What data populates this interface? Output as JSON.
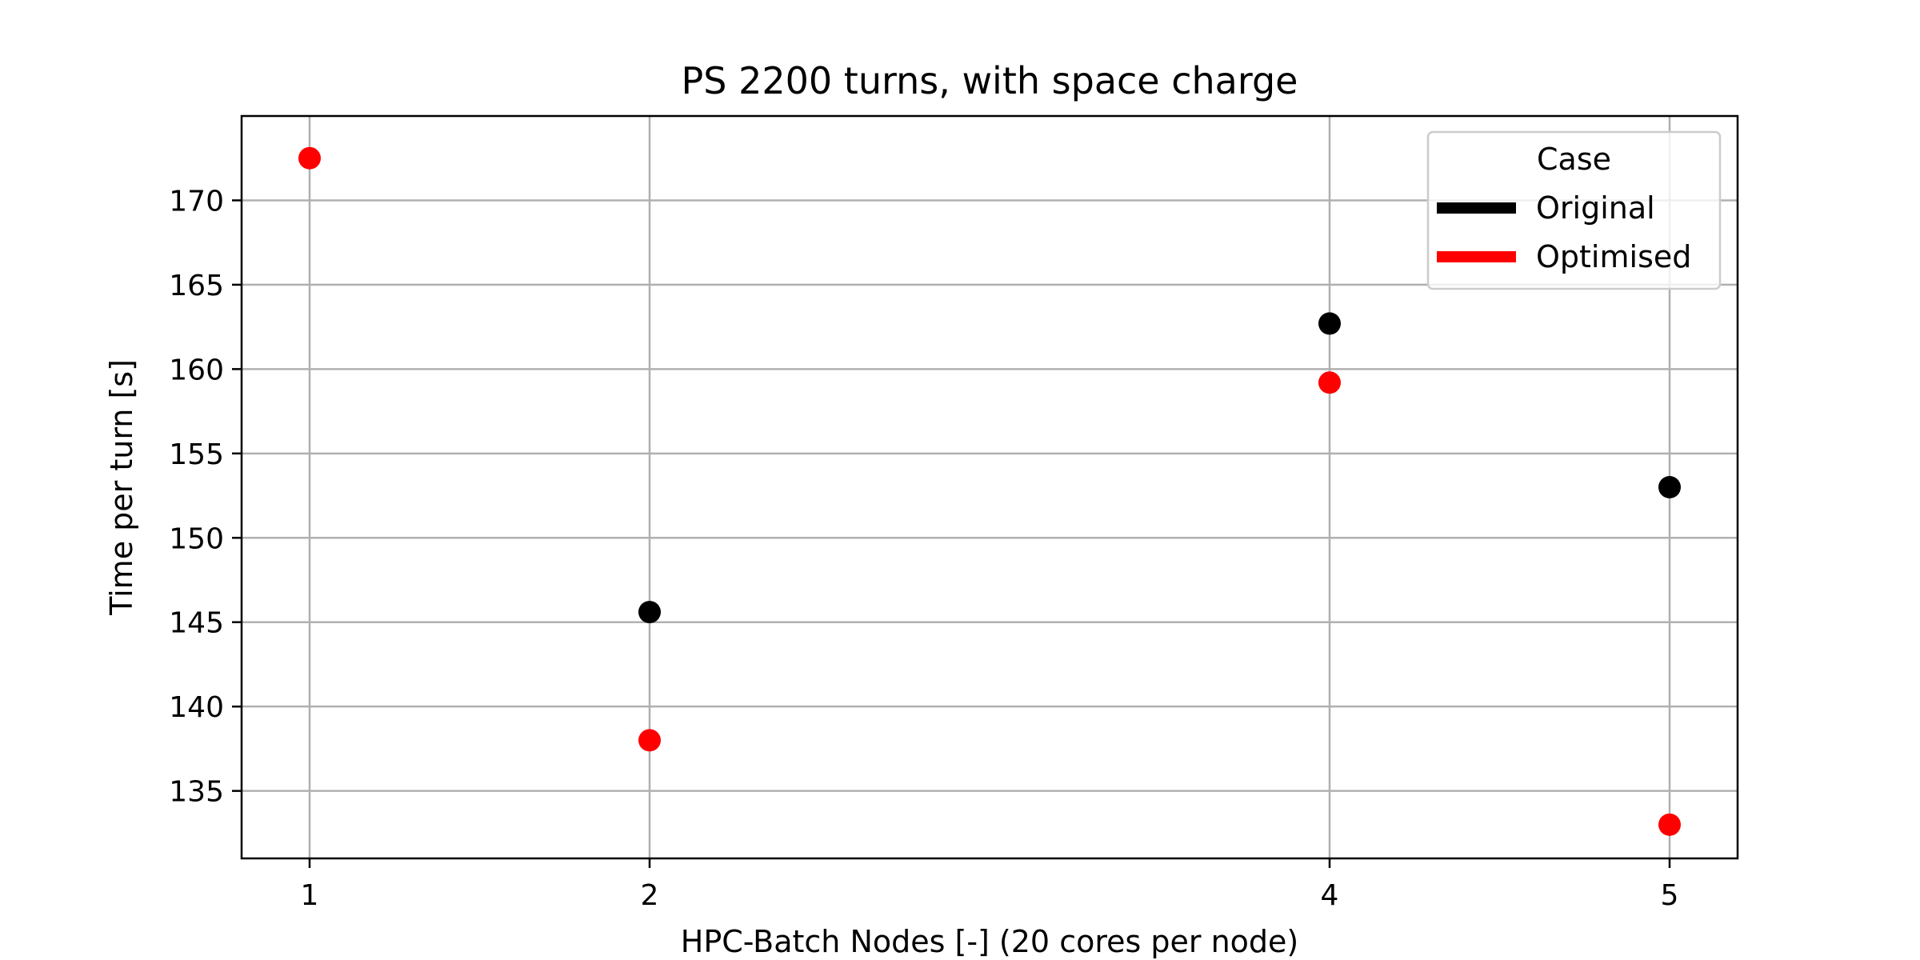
{
  "chart_data": {
    "type": "scatter",
    "title": "PS 2200 turns, with space charge",
    "xlabel": "HPC-Batch Nodes [-] (20 cores per node)",
    "ylabel": "Time per turn [s]",
    "x_ticks": [
      1,
      2,
      4,
      5
    ],
    "y_ticks": [
      135,
      140,
      145,
      150,
      155,
      160,
      165,
      170
    ],
    "xlim": [
      0.8,
      5.2
    ],
    "ylim": [
      131,
      175
    ],
    "grid": true,
    "legend": {
      "title": "Case",
      "placement": "top-right",
      "entries": [
        {
          "label": "Original",
          "color": "#000000"
        },
        {
          "label": "Optimised",
          "color": "#ff0000"
        }
      ]
    },
    "series": [
      {
        "name": "Original",
        "color": "#000000",
        "x": [
          2,
          4,
          5
        ],
        "y": [
          145.6,
          162.7,
          153.0
        ]
      },
      {
        "name": "Optimised",
        "color": "#ff0000",
        "x": [
          1,
          2,
          4,
          5
        ],
        "y": [
          172.5,
          138.0,
          159.2,
          133.0
        ]
      }
    ]
  }
}
